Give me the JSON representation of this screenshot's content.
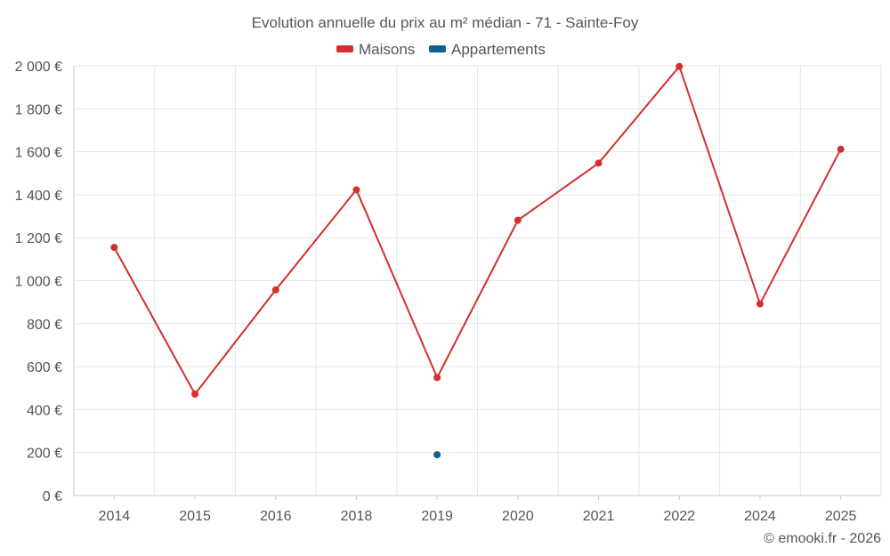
{
  "chart_data": {
    "type": "line",
    "title": "Evolution annuelle du prix au m² médian - 71 - Sainte-Foy",
    "categories": [
      "2014",
      "2015",
      "2016",
      "2018",
      "2019",
      "2020",
      "2021",
      "2022",
      "2024",
      "2025"
    ],
    "series": [
      {
        "name": "Maisons",
        "color": "#d32f2f",
        "values": [
          1155,
          472,
          957,
          1423,
          549,
          1281,
          1547,
          1997,
          892,
          1612
        ]
      },
      {
        "name": "Appartements",
        "color": "#0d5f96",
        "values": [
          null,
          null,
          null,
          null,
          190,
          null,
          null,
          null,
          null,
          null
        ]
      }
    ],
    "ylim": [
      0,
      2000
    ],
    "yticks": [
      0,
      200,
      400,
      600,
      800,
      1000,
      1200,
      1400,
      1600,
      1800,
      2000
    ],
    "ytick_labels": [
      "0 €",
      "200 €",
      "400 €",
      "600 €",
      "800 €",
      "1 000 €",
      "1 200 €",
      "1 400 €",
      "1 600 €",
      "1 800 €",
      "2 000 €"
    ],
    "xlabel": "",
    "ylabel": "",
    "grid": true,
    "legend": "top-center"
  },
  "credit": "© emooki.fr - 2026"
}
